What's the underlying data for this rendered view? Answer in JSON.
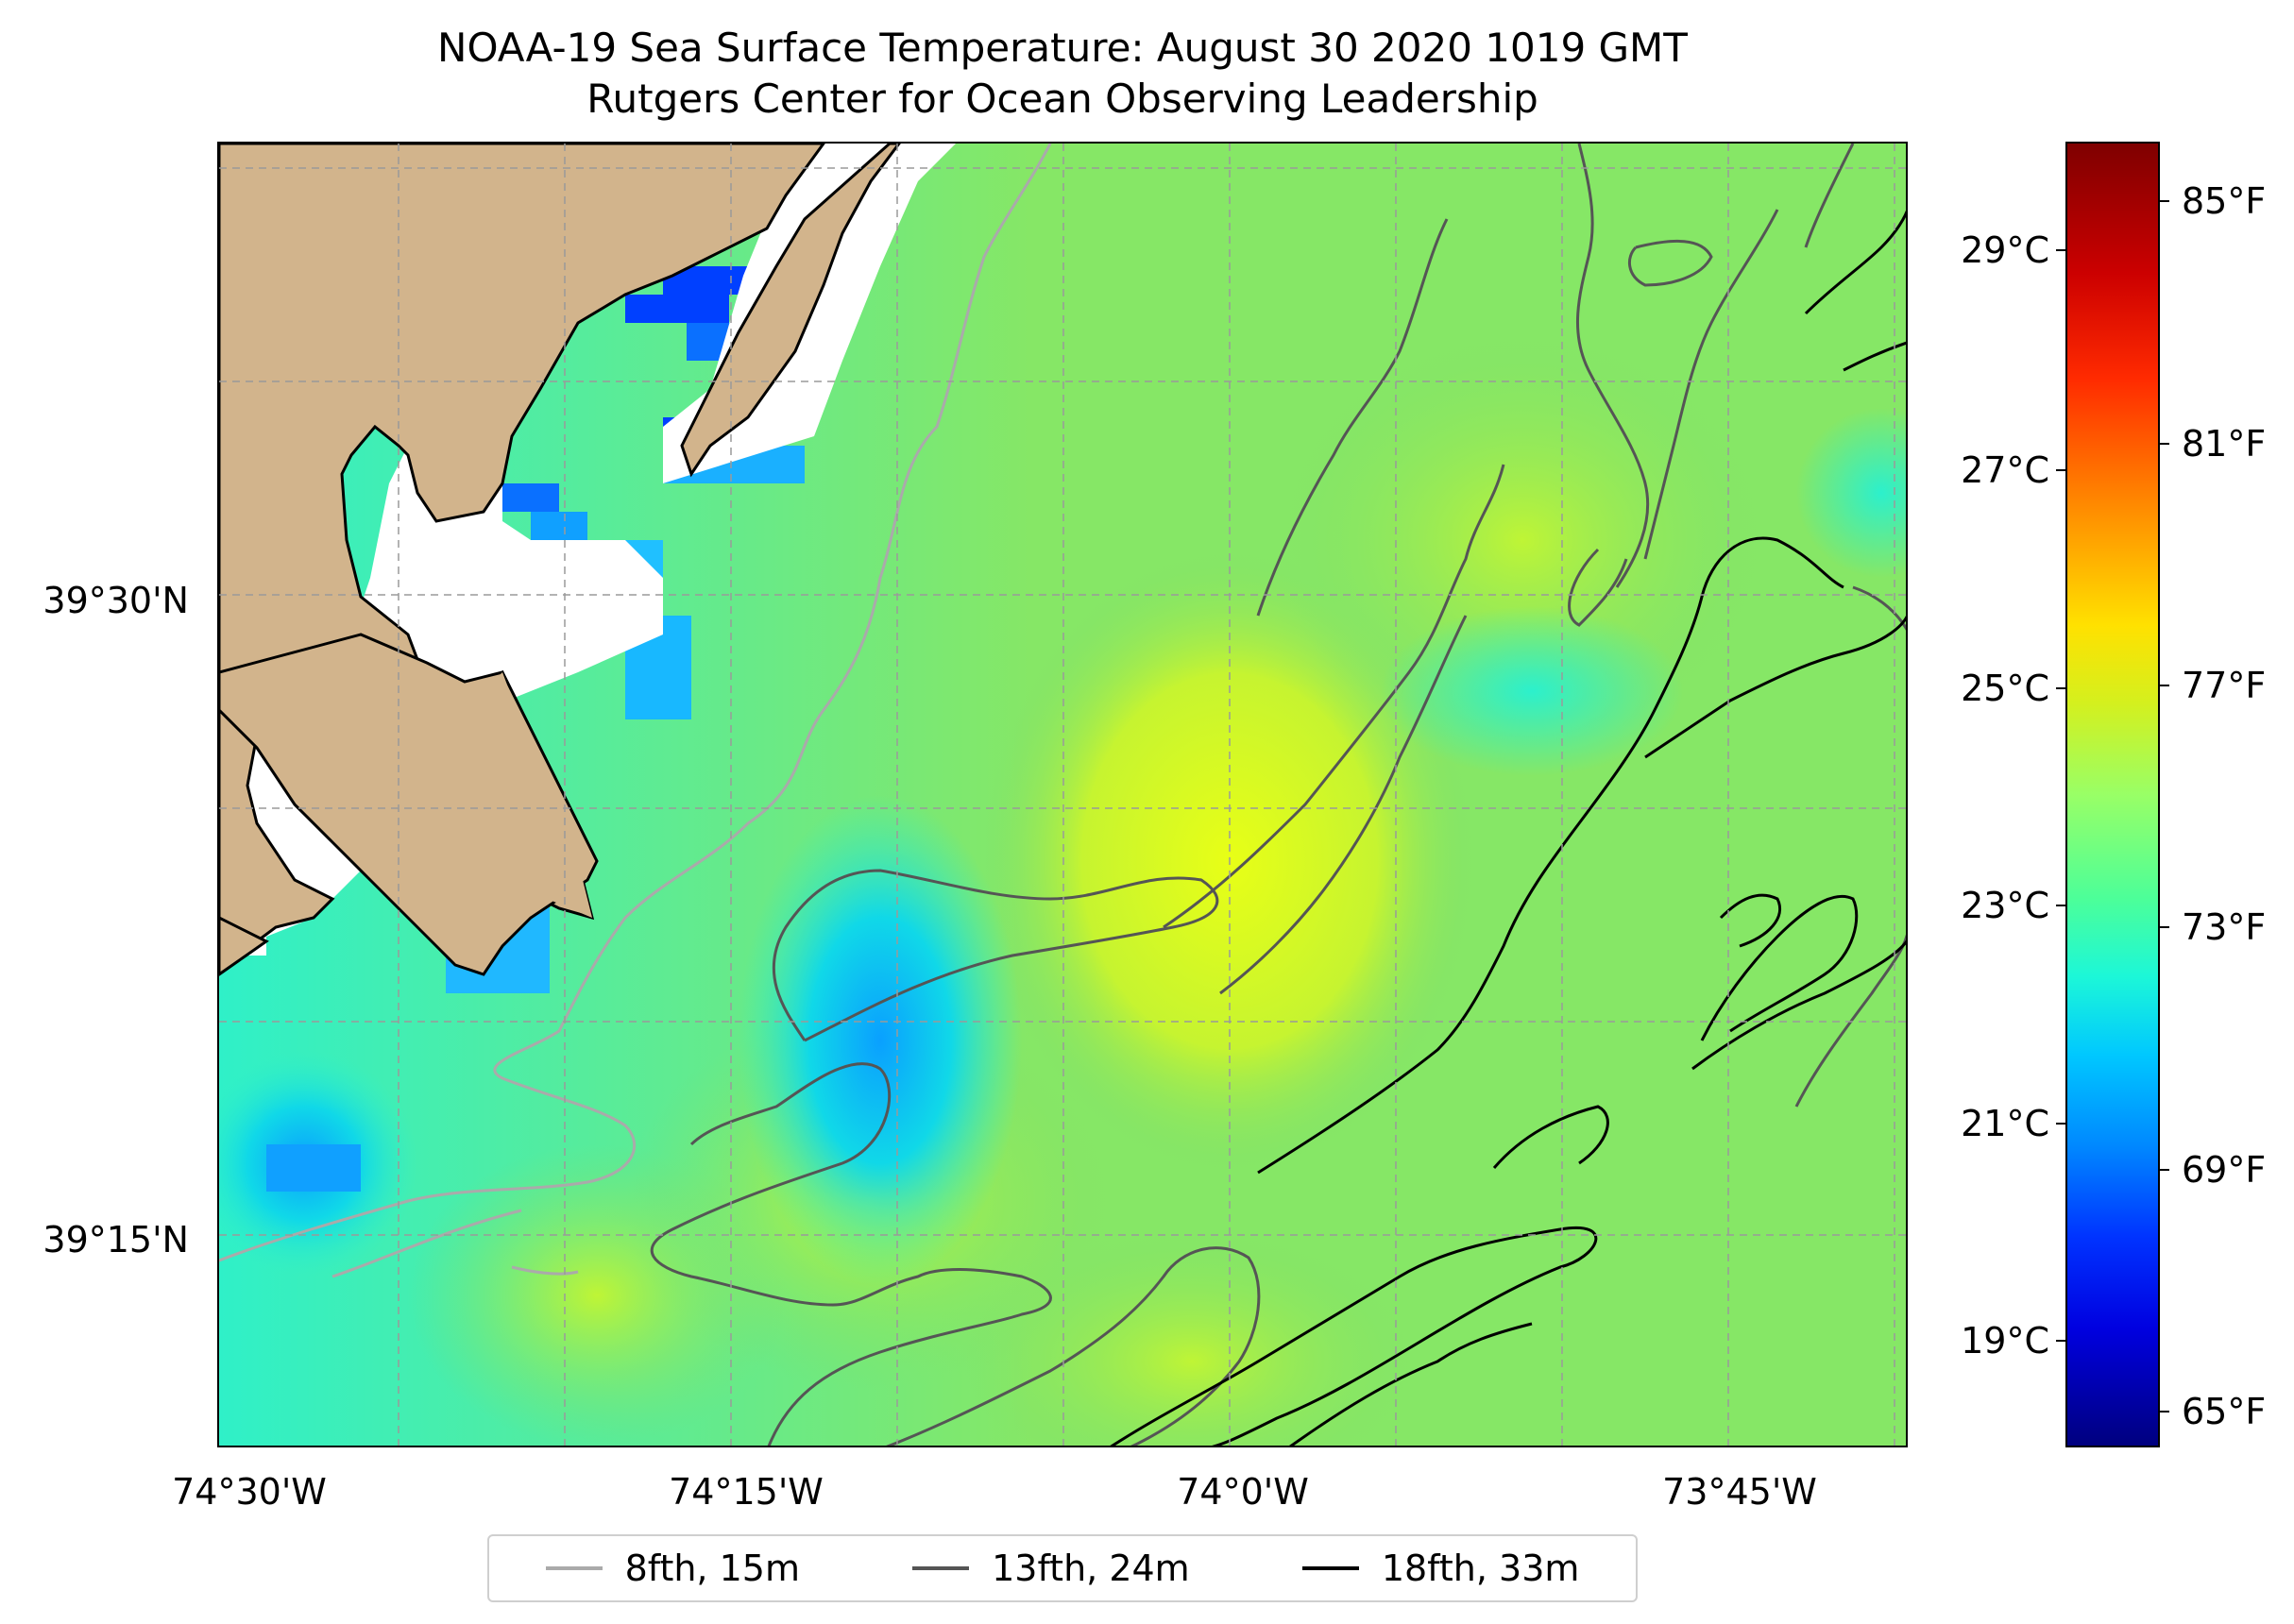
{
  "title": {
    "line1": "NOAA-19 Sea Surface Temperature: August 30 2020 1019 GMT",
    "line2": "Rutgers Center for Ocean Observing Leadership"
  },
  "map": {
    "x_ticks": [
      "74°30'W",
      "74°15'W",
      "74°0'W",
      "73°45'W"
    ],
    "y_ticks": [
      "39°30'N",
      "39°15'N"
    ],
    "land_color": "#d2b48c",
    "no_data_color": "#ffffff",
    "gridlines": "dashed",
    "colormap": "jet"
  },
  "colorbar": {
    "celsius_ticks": [
      "29°C",
      "27°C",
      "25°C",
      "23°C",
      "21°C",
      "19°C"
    ],
    "fahrenheit_ticks": [
      "85°F",
      "81°F",
      "77°F",
      "73°F",
      "69°F",
      "65°F"
    ]
  },
  "legend": {
    "items": [
      {
        "label": "8fth, 15m",
        "color": "#aaaaaa"
      },
      {
        "label": "13fth, 24m",
        "color": "#555555"
      },
      {
        "label": "18fth, 33m",
        "color": "#000000"
      }
    ]
  }
}
